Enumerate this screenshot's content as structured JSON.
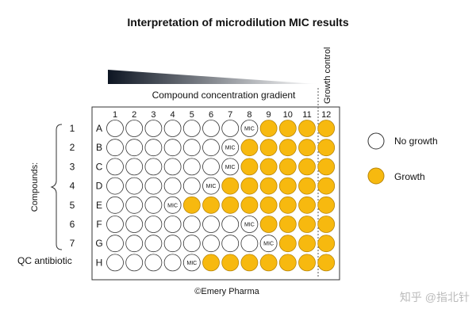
{
  "title": "Interpretation of microdilution MIC results",
  "gradient_label": "Compound concentration gradient",
  "growth_control_label": "Growth control",
  "compounds_label": "Compounds:",
  "qc_label": "QC antibiotic",
  "columns": [
    "1",
    "2",
    "3",
    "4",
    "5",
    "6",
    "7",
    "8",
    "9",
    "10",
    "11",
    "12"
  ],
  "rows": [
    {
      "letter": "A",
      "number": "1",
      "mic_col": 8
    },
    {
      "letter": "B",
      "number": "2",
      "mic_col": 7
    },
    {
      "letter": "C",
      "number": "3",
      "mic_col": 7
    },
    {
      "letter": "D",
      "number": "4",
      "mic_col": 6
    },
    {
      "letter": "E",
      "number": "5",
      "mic_col": 4
    },
    {
      "letter": "F",
      "number": "6",
      "mic_col": 8
    },
    {
      "letter": "G",
      "number": "7",
      "mic_col": 9
    },
    {
      "letter": "H",
      "number": "",
      "mic_col": 5
    }
  ],
  "mic_label": "MIC",
  "legend": {
    "no_growth": "No growth",
    "growth": "Growth"
  },
  "credit": "©Emery Pharma",
  "watermark": "知乎 @指北针",
  "colors": {
    "growth": "#F7B90F",
    "growth_stroke": "#B8860B",
    "no_growth": "#ffffff",
    "well_stroke": "#333333",
    "gradient_dark": "#0d1522",
    "gradient_light": "#ffffff",
    "text": "#111111",
    "watermark": "#bbbbbb"
  }
}
